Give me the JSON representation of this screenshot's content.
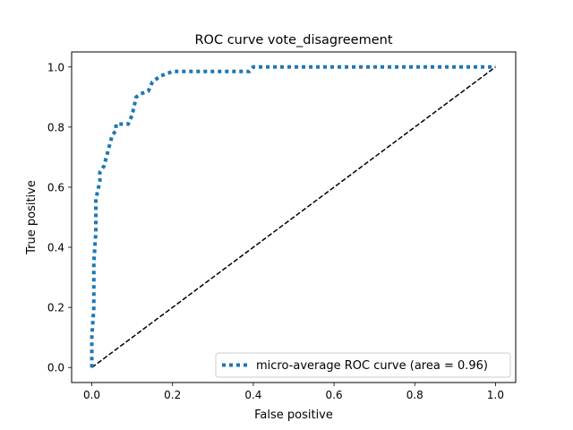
{
  "chart_data": {
    "type": "line",
    "title": "ROC curve vote_disagreement",
    "xlabel": "False positive",
    "ylabel": "True positive",
    "xlim": [
      -0.05,
      1.05
    ],
    "ylim": [
      -0.05,
      1.05
    ],
    "xticks": [
      "0.0",
      "0.2",
      "0.4",
      "0.6",
      "0.8",
      "1.0"
    ],
    "yticks": [
      "0.0",
      "0.2",
      "0.4",
      "0.6",
      "0.8",
      "1.0"
    ],
    "grid": false,
    "legend": {
      "position": "lower-right"
    },
    "series": [
      {
        "name": "micro-average ROC curve (area = 0.96)",
        "color": "#1f77b4",
        "style": "dotted",
        "x": [
          0.0,
          0.0,
          0.005,
          0.005,
          0.01,
          0.01,
          0.02,
          0.02,
          0.03,
          0.04,
          0.05,
          0.06,
          0.06,
          0.09,
          0.1,
          0.11,
          0.12,
          0.14,
          0.15,
          0.17,
          0.19,
          0.2,
          0.39,
          0.4,
          1.0
        ],
        "y": [
          0.0,
          0.1,
          0.2,
          0.35,
          0.45,
          0.56,
          0.62,
          0.65,
          0.67,
          0.72,
          0.77,
          0.79,
          0.81,
          0.81,
          0.84,
          0.9,
          0.91,
          0.92,
          0.95,
          0.97,
          0.98,
          0.985,
          0.985,
          1.0,
          1.0
        ]
      },
      {
        "name": "",
        "color": "#000000",
        "style": "dashed",
        "x": [
          0.0,
          1.0
        ],
        "y": [
          0.0,
          1.0
        ]
      }
    ]
  }
}
